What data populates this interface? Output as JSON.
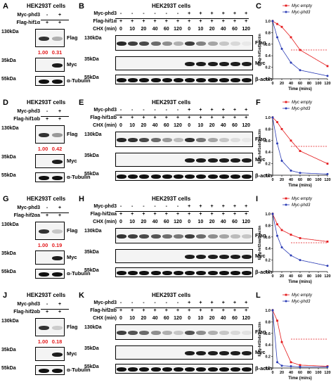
{
  "colors": {
    "empty": "#e41a1c",
    "phd3": "#2b3cb5",
    "ratio": "#e41a1c"
  },
  "rows": [
    {
      "left": {
        "letter": "A",
        "title": "HEK293T cells",
        "rows": [
          "Myc-phd3",
          "Flag-hif1α"
        ],
        "signs": [
          [
            "-",
            "+"
          ],
          [
            "+",
            "+"
          ]
        ],
        "bands": [
          {
            "mw": "130kDa",
            "label": "Flag"
          },
          {
            "mw": "35kDa",
            "label": "Myc"
          },
          {
            "mw": "55kDa",
            "label": "α-Tubulin"
          }
        ],
        "ratios": [
          "1.00",
          "0.31"
        ],
        "flag": [
          0.85,
          0.3
        ]
      },
      "mid": {
        "letter": "B",
        "title": "HEK293T cells",
        "rows": [
          "Myc-phd3",
          "Flag-hif1α",
          "CHX (min)"
        ],
        "signs": [
          [
            "-",
            "-",
            "-",
            "-",
            "-",
            "-",
            "+",
            "+",
            "+",
            "+",
            "+",
            "+"
          ],
          [
            "+",
            "+",
            "+",
            "+",
            "+",
            "+",
            "+",
            "+",
            "+",
            "+",
            "+",
            "+"
          ]
        ],
        "times": [
          "0",
          "10",
          "20",
          "40",
          "60",
          "120",
          "0",
          "10",
          "20",
          "40",
          "60",
          "120"
        ],
        "bands": [
          {
            "mw": "130kDa",
            "label": "Flag"
          },
          {
            "mw": "35kDa",
            "label": "Myc"
          },
          {
            "mw": "55kDa",
            "label": "β-actin"
          }
        ],
        "flag": [
          0.9,
          0.8,
          0.75,
          0.6,
          0.45,
          0.3,
          0.8,
          0.5,
          0.35,
          0.2,
          0.12,
          0.05
        ]
      },
      "chart": {
        "letter": "C",
        "ylabel": "Flag-hif1α/β-actin"
      }
    },
    {
      "left": {
        "letter": "D",
        "title": "HEK293T cells",
        "rows": [
          "Myc-phd3",
          "Flag-hif1αb"
        ],
        "signs": [
          [
            "-",
            "+"
          ],
          [
            "+",
            "+"
          ]
        ],
        "bands": [
          {
            "mw": "130kDa",
            "label": "Flag"
          },
          {
            "mw": "35kDa",
            "label": "Myc"
          },
          {
            "mw": "55kDa",
            "label": "α-Tubulin"
          }
        ],
        "ratios": [
          "1.00",
          "0.42"
        ],
        "flag": [
          0.85,
          0.4
        ]
      },
      "mid": {
        "letter": "E",
        "title": "HEK293T cells",
        "rows": [
          "Myc-phd3",
          "Flag-hif1αb",
          "CHX (min)"
        ],
        "signs": [
          [
            "-",
            "-",
            "-",
            "-",
            "-",
            "-",
            "+",
            "+",
            "+",
            "+",
            "+",
            "+"
          ],
          [
            "+",
            "+",
            "+",
            "+",
            "+",
            "+",
            "+",
            "+",
            "+",
            "+",
            "+",
            "+"
          ]
        ],
        "times": [
          "0",
          "10",
          "20",
          "40",
          "60",
          "120",
          "0",
          "10",
          "20",
          "40",
          "60",
          "120"
        ],
        "bands": [
          {
            "mw": "130kDa",
            "label": "Flag"
          },
          {
            "mw": "35kDa",
            "label": "Myc"
          },
          {
            "mw": "55kDa",
            "label": "β-actin"
          }
        ],
        "flag": [
          0.9,
          0.85,
          0.75,
          0.6,
          0.4,
          0.25,
          0.85,
          0.55,
          0.35,
          0.2,
          0.1,
          0.05
        ]
      },
      "chart": {
        "letter": "F",
        "ylabel": "Flag-hif1αb/β-actin"
      }
    },
    {
      "left": {
        "letter": "G",
        "title": "HEK293T cells",
        "rows": [
          "Myc-phd3",
          "Flag-hif2αa"
        ],
        "signs": [
          [
            "-",
            "+"
          ],
          [
            "+",
            "+"
          ]
        ],
        "bands": [
          {
            "mw": "130kDa",
            "label": "Flag"
          },
          {
            "mw": "35kDa",
            "label": "Myc"
          },
          {
            "mw": "55kDa",
            "label": "α-Tubulin"
          }
        ],
        "ratios": [
          "1.00",
          "0.19"
        ],
        "flag": [
          0.85,
          0.2
        ]
      },
      "mid": {
        "letter": "H",
        "title": "HEK293T cells",
        "rows": [
          "Myc-phd3",
          "Flag-hif2αa",
          "CHX (min)"
        ],
        "signs": [
          [
            "-",
            "-",
            "-",
            "-",
            "-",
            "-",
            "+",
            "+",
            "+",
            "+",
            "+",
            "+"
          ],
          [
            "+",
            "+",
            "+",
            "+",
            "+",
            "+",
            "+",
            "+",
            "+",
            "+",
            "+",
            "+"
          ]
        ],
        "times": [
          "0",
          "10",
          "20",
          "40",
          "60",
          "120",
          "0",
          "10",
          "20",
          "40",
          "60",
          "120"
        ],
        "bands": [
          {
            "mw": "130kDa",
            "label": "Flag"
          },
          {
            "mw": "35kDa",
            "label": "Myc"
          },
          {
            "mw": "55kDa",
            "label": "β-actin"
          }
        ],
        "flag": [
          0.85,
          0.8,
          0.75,
          0.7,
          0.6,
          0.55,
          0.8,
          0.6,
          0.45,
          0.35,
          0.25,
          0.2
        ]
      },
      "chart": {
        "letter": "I",
        "ylabel": "Flag-hif2αa/β-actin"
      }
    },
    {
      "left": {
        "letter": "J",
        "title": "HEK293T cells",
        "rows": [
          "Myc-phd3",
          "Flag-hif2αb"
        ],
        "signs": [
          [
            "-",
            "+"
          ],
          [
            "+",
            "+"
          ]
        ],
        "bands": [
          {
            "mw": "130kDa",
            "label": "Flag"
          },
          {
            "mw": "35kDa",
            "label": "Myc"
          },
          {
            "mw": "55kDa",
            "label": "α-Tubulin"
          }
        ],
        "ratios": [
          "1.00",
          "0.18"
        ],
        "flag": [
          0.85,
          0.18
        ]
      },
      "mid": {
        "letter": "K",
        "title": "HEK293T cells",
        "rows": [
          "Myc-phd3",
          "Flag-hif2αb",
          "CHX (min)"
        ],
        "signs": [
          [
            "-",
            "-",
            "-",
            "-",
            "-",
            "-",
            "+",
            "+",
            "+",
            "+",
            "+",
            "+"
          ],
          [
            "+",
            "+",
            "+",
            "+",
            "+",
            "+",
            "+",
            "+",
            "+",
            "+",
            "+",
            "+"
          ]
        ],
        "times": [
          "0",
          "10",
          "20",
          "40",
          "60",
          "120",
          "0",
          "10",
          "20",
          "40",
          "60",
          "120"
        ],
        "bands": [
          {
            "mw": "130kDa",
            "label": "Flag"
          },
          {
            "mw": "35kDa",
            "label": "Myc"
          },
          {
            "mw": "55kDa",
            "label": "β-actin"
          }
        ],
        "flag": [
          0.8,
          0.7,
          0.6,
          0.45,
          0.3,
          0.2,
          0.7,
          0.45,
          0.3,
          0.2,
          0.12,
          0.08
        ]
      },
      "chart": {
        "letter": "L",
        "ylabel": "Flag-hif2αb/β-actin"
      }
    }
  ],
  "chart_data": [
    {
      "type": "scatter",
      "title": "",
      "xlabel": "Time (mins)",
      "ylabel": "Flag-hif1α/β-actin",
      "xlim": [
        0,
        120
      ],
      "ylim": [
        0,
        1.0
      ],
      "x_ticks": [
        "0",
        "20",
        "40",
        "60",
        "80",
        "100",
        "120"
      ],
      "y_ticks": [
        "0.0",
        "0.2",
        "0.4",
        "0.6",
        "0.8",
        "1.0"
      ],
      "legend": "top-right",
      "reference_line": 0.5,
      "series": [
        {
          "name": "Myc empty",
          "x": [
            0,
            10,
            20,
            40,
            60,
            120
          ],
          "y": [
            1.0,
            0.95,
            0.9,
            0.72,
            0.5,
            0.22
          ]
        },
        {
          "name": "Myc-phd3",
          "x": [
            0,
            10,
            20,
            40,
            60,
            120
          ],
          "y": [
            1.0,
            0.72,
            0.52,
            0.28,
            0.15,
            0.05
          ]
        }
      ]
    },
    {
      "type": "scatter",
      "title": "",
      "xlabel": "Time (mins)",
      "ylabel": "Flag-hif1αb/β-actin",
      "xlim": [
        0,
        120
      ],
      "ylim": [
        0,
        1.0
      ],
      "x_ticks": [
        "0",
        "20",
        "40",
        "60",
        "80",
        "100",
        "120"
      ],
      "y_ticks": [
        "0.0",
        "0.2",
        "0.4",
        "0.6",
        "0.8",
        "1.0"
      ],
      "legend": "top-right",
      "reference_line": 0.5,
      "series": [
        {
          "name": "Myc empty",
          "x": [
            0,
            10,
            20,
            40,
            60,
            120
          ],
          "y": [
            1.0,
            0.92,
            0.8,
            0.6,
            0.42,
            0.2
          ]
        },
        {
          "name": "Myc-phd3",
          "x": [
            0,
            10,
            20,
            40,
            60,
            120
          ],
          "y": [
            1.0,
            0.55,
            0.25,
            0.08,
            0.04,
            0.02
          ]
        }
      ]
    },
    {
      "type": "scatter",
      "title": "",
      "xlabel": "Time (mins)",
      "ylabel": "Flag-hif2αa/β-actin",
      "xlim": [
        0,
        120
      ],
      "ylim": [
        0,
        1.0
      ],
      "x_ticks": [
        "0",
        "20",
        "40",
        "60",
        "80",
        "100",
        "120"
      ],
      "y_ticks": [
        "0.0",
        "0.2",
        "0.4",
        "0.6",
        "0.8",
        "1.0"
      ],
      "legend": "top-right",
      "reference_line": 0.5,
      "series": [
        {
          "name": "Myc empty",
          "x": [
            0,
            10,
            20,
            40,
            60,
            120
          ],
          "y": [
            1.0,
            0.82,
            0.72,
            0.64,
            0.58,
            0.52
          ]
        },
        {
          "name": "Myc-phd3",
          "x": [
            0,
            10,
            20,
            40,
            60,
            120
          ],
          "y": [
            1.0,
            0.62,
            0.42,
            0.28,
            0.2,
            0.1
          ]
        }
      ]
    },
    {
      "type": "scatter",
      "title": "",
      "xlabel": "Time (mins)",
      "ylabel": "Flag-hif2αb/β-actin",
      "xlim": [
        0,
        120
      ],
      "ylim": [
        0,
        1.0
      ],
      "x_ticks": [
        "0",
        "20",
        "40",
        "60",
        "80",
        "100",
        "120"
      ],
      "y_ticks": [
        "0.0",
        "0.2",
        "0.4",
        "0.6",
        "0.8",
        "1.0"
      ],
      "legend": "top-right",
      "reference_line": 0.5,
      "series": [
        {
          "name": "Myc empty",
          "x": [
            0,
            10,
            20,
            40,
            60,
            120
          ],
          "y": [
            1.0,
            0.82,
            0.45,
            0.1,
            0.05,
            0.03
          ]
        },
        {
          "name": "Myc-phd3",
          "x": [
            0,
            10,
            20,
            40,
            60,
            120
          ],
          "y": [
            1.0,
            0.1,
            0.04,
            0.03,
            0.02,
            0.02
          ]
        }
      ]
    }
  ]
}
